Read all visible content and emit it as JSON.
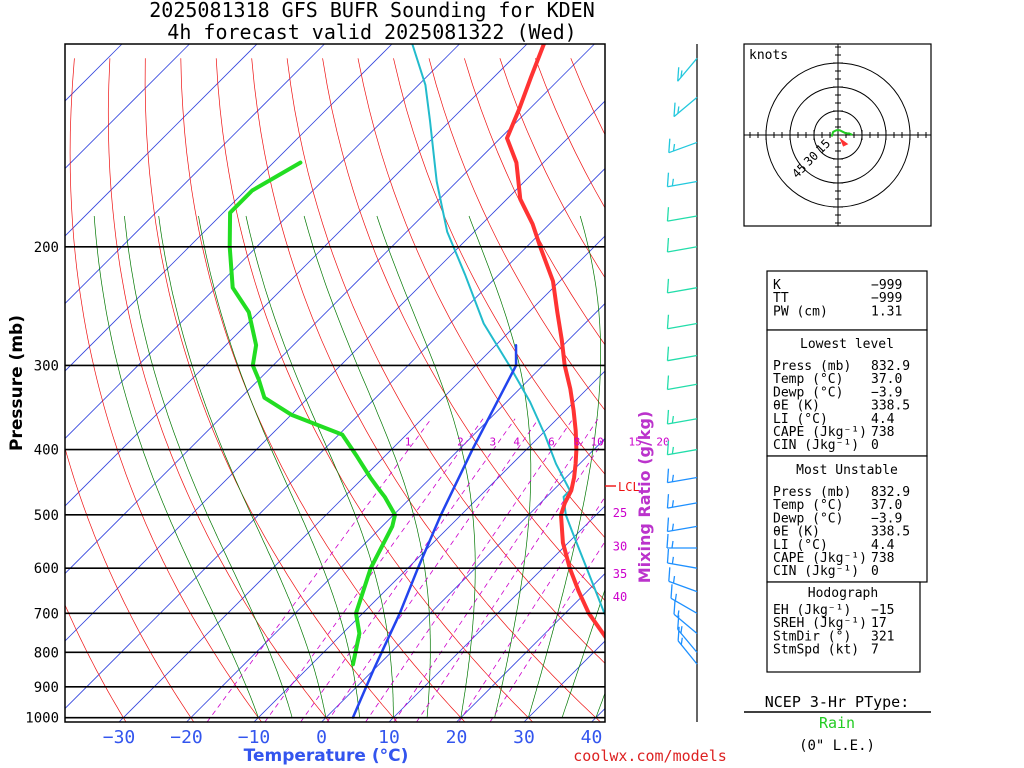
{
  "chart_data": {
    "type": "skew-t",
    "title": "2025081318 GFS BUFR Sounding for KDEN",
    "subtitle": "4h forecast valid 2025081322 (Wed)",
    "xlabel": "Temperature (°C)",
    "ylabel": "Pressure (mb)",
    "mixing_label": "Mixing Ratio (g/kg)",
    "xlim": [
      -38,
      42
    ],
    "ylim": [
      1000,
      100
    ],
    "x_ticks": [
      -30,
      -20,
      -10,
      0,
      10,
      20,
      30,
      40
    ],
    "x_tick_labels": [
      "−30",
      "−20",
      "−10",
      "0",
      "10",
      "20",
      "30",
      "40"
    ],
    "p_ticks": [
      1000,
      900,
      800,
      700,
      600,
      500,
      400,
      300,
      200
    ],
    "p_tick_labels": [
      "1000",
      "900",
      "800",
      "700",
      "600",
      "500",
      "400",
      "300",
      "200"
    ],
    "mixing_ratios": [
      1,
      2,
      3,
      4,
      6,
      8,
      10,
      15,
      20
    ],
    "mixing_ratio_labels": [
      "1",
      "2",
      "3",
      "4",
      "6",
      "8",
      "10",
      "15",
      "20"
    ],
    "theta_e_labels": [
      "25",
      "30",
      "35",
      "40"
    ],
    "lcl_label": "LCL",
    "series": [
      {
        "values": [
          [
            832.9,
            37.0
          ],
          [
            780,
            31.5
          ],
          [
            700,
            23.5
          ],
          [
            650,
            18.8
          ],
          [
            600,
            14.0
          ],
          [
            550,
            9.2
          ],
          [
            500,
            4.8
          ],
          [
            480,
            3.6
          ],
          [
            460,
            2.7
          ],
          [
            440,
            1.2
          ],
          [
            420,
            -0.6
          ],
          [
            400,
            -2.6
          ],
          [
            375,
            -5.5
          ],
          [
            350,
            -8.8
          ],
          [
            325,
            -12.5
          ],
          [
            300,
            -16.8
          ],
          [
            275,
            -21.0
          ],
          [
            250,
            -25.8
          ],
          [
            225,
            -31.0
          ],
          [
            200,
            -38.0
          ],
          [
            185,
            -42.5
          ],
          [
            170,
            -48.0
          ],
          [
            150,
            -54.0
          ],
          [
            138,
            -59.0
          ],
          [
            125,
            -61.5
          ],
          [
            112,
            -64.5
          ],
          [
            100,
            -67.5
          ]
        ]
      },
      {
        "values": [
          [
            832.9,
            -3.9
          ],
          [
            750,
            -7.5
          ],
          [
            700,
            -11.0
          ],
          [
            600,
            -15.5
          ],
          [
            520,
            -18.5
          ],
          [
            500,
            -19.8
          ],
          [
            470,
            -24.0
          ],
          [
            455,
            -26.5
          ],
          [
            440,
            -29.0
          ],
          [
            410,
            -34.0
          ],
          [
            380,
            -39.5
          ],
          [
            355,
            -50.0
          ],
          [
            335,
            -56.5
          ],
          [
            315,
            -60.0
          ],
          [
            300,
            -63.0
          ],
          [
            280,
            -65.5
          ],
          [
            250,
            -71.5
          ],
          [
            230,
            -77.5
          ],
          [
            200,
            -84.0
          ],
          [
            178,
            -89.0
          ],
          [
            165,
            -89.0
          ],
          [
            150,
            -86.0
          ]
        ]
      },
      {
        "values": [
          [
            832.9,
            37.0
          ],
          [
            780,
            32.8
          ],
          [
            700,
            25.8
          ],
          [
            600,
            16.5
          ],
          [
            530,
            9.0
          ],
          [
            500,
            5.5
          ],
          [
            470,
            2.5
          ],
          [
            460,
            2.5
          ],
          [
            420,
            -3.5
          ],
          [
            380,
            -9.5
          ],
          [
            340,
            -16.5
          ],
          [
            300,
            -25.0
          ],
          [
            260,
            -35.0
          ],
          [
            220,
            -45.0
          ],
          [
            190,
            -54.0
          ],
          [
            160,
            -63.0
          ],
          [
            130,
            -73.0
          ],
          [
            115,
            -79.0
          ],
          [
            100,
            -87.0
          ]
        ]
      },
      {
        "values": [
          [
            1000,
            4.0
          ],
          [
            850,
            0.0
          ],
          [
            700,
            -4.5
          ],
          [
            600,
            -8.5
          ],
          [
            500,
            -13.0
          ],
          [
            400,
            -18.0
          ],
          [
            300,
            -24.0
          ],
          [
            280,
            -27.0
          ]
        ]
      }
    ]
  },
  "wind_barbs": {
    "profile": [
      {
        "p": 832.9,
        "kt": 7,
        "dir": 321
      },
      {
        "p": 800,
        "kt": 8,
        "dir": 320
      },
      {
        "p": 750,
        "kt": 8,
        "dir": 310
      },
      {
        "p": 700,
        "kt": 7,
        "dir": 300
      },
      {
        "p": 650,
        "kt": 6,
        "dir": 290
      },
      {
        "p": 600,
        "kt": 5,
        "dir": 280
      },
      {
        "p": 560,
        "kt": 5,
        "dir": 270
      },
      {
        "p": 520,
        "kt": 6,
        "dir": 260
      },
      {
        "p": 480,
        "kt": 7,
        "dir": 260
      },
      {
        "p": 440,
        "kt": 8,
        "dir": 260
      },
      {
        "p": 400,
        "kt": 9,
        "dir": 260
      },
      {
        "p": 360,
        "kt": 9,
        "dir": 260
      },
      {
        "p": 320,
        "kt": 10,
        "dir": 260
      },
      {
        "p": 290,
        "kt": 10,
        "dir": 260
      },
      {
        "p": 260,
        "kt": 10,
        "dir": 260
      },
      {
        "p": 230,
        "kt": 10,
        "dir": 260
      },
      {
        "p": 200,
        "kt": 10,
        "dir": 260
      },
      {
        "p": 180,
        "kt": 10,
        "dir": 260
      },
      {
        "p": 160,
        "kt": 8,
        "dir": 260
      },
      {
        "p": 140,
        "kt": 5,
        "dir": 250
      },
      {
        "p": 120,
        "kt": 5,
        "dir": 230
      },
      {
        "p": 105,
        "kt": 5,
        "dir": 220
      }
    ]
  },
  "hodograph": {
    "units_label": "knots",
    "ring_labels": [
      "15",
      "30",
      "45"
    ],
    "ring_speeds": [
      15,
      30,
      45
    ],
    "trace": [
      [
        -4,
        -1
      ],
      [
        -3,
        2
      ],
      [
        -1,
        3
      ],
      [
        1,
        3
      ],
      [
        3,
        2
      ],
      [
        5,
        1
      ],
      [
        7,
        1
      ],
      [
        9,
        0
      ]
    ],
    "storm_motion": [
      4,
      -5
    ]
  },
  "indices": {
    "top": [
      {
        "label": "K",
        "value": "−999"
      },
      {
        "label": "TT",
        "value": "−999"
      },
      {
        "label": "PW (cm)",
        "value": "1.31"
      }
    ],
    "lowest_title": "Lowest level",
    "lowest": [
      {
        "label": "Press (mb)",
        "value": "832.9"
      },
      {
        "label": "Temp (°C)",
        "value": "37.0"
      },
      {
        "label": "Dewp (°C)",
        "value": "−3.9"
      },
      {
        "label": "θE (K)",
        "value": "338.5"
      },
      {
        "label": "LI (°C)",
        "value": "4.4"
      },
      {
        "label": "CAPE (Jkg⁻¹)",
        "value": "738"
      },
      {
        "label": "CIN (Jkg⁻¹)",
        "value": "0"
      }
    ],
    "unstable_title": "Most Unstable",
    "unstable": [
      {
        "label": "Press (mb)",
        "value": "832.9"
      },
      {
        "label": "Temp (°C)",
        "value": "37.0"
      },
      {
        "label": "Dewp (°C)",
        "value": "−3.9"
      },
      {
        "label": "θE (K)",
        "value": "338.5"
      },
      {
        "label": "LI (°C)",
        "value": "4.4"
      },
      {
        "label": "CAPE (Jkg⁻¹)",
        "value": "738"
      },
      {
        "label": "CIN (Jkg⁻¹)",
        "value": "0"
      }
    ],
    "hodo_title": "Hodograph",
    "hodo": [
      {
        "label": "EH (Jkg⁻¹)",
        "value": "−15"
      },
      {
        "label": "SREH (Jkg⁻¹)",
        "value": "17"
      },
      {
        "label": "StmDir (°)",
        "value": "321"
      },
      {
        "label": "StmSpd (kt)",
        "value": "7"
      }
    ]
  },
  "ptype": {
    "title": "NCEP 3-Hr PType:",
    "value": "Rain",
    "accum": "(0\" L.E.)"
  },
  "footer": {
    "site": "coolwx.com/models"
  },
  "colors": {
    "temperature": "#ff3333",
    "dewpoint": "#22dd22",
    "parcel": "#22bbcc",
    "wetbulb": "#2244ee",
    "isotherm": "#3344dd",
    "dry_adiabat": "#ee1111",
    "moist_adiabat": "#007700",
    "mixing": "#cc00cc",
    "axis_title": "#3355ee",
    "ylabel": "#000000",
    "footer": "#dd2222",
    "ptype": "#22cc22"
  }
}
